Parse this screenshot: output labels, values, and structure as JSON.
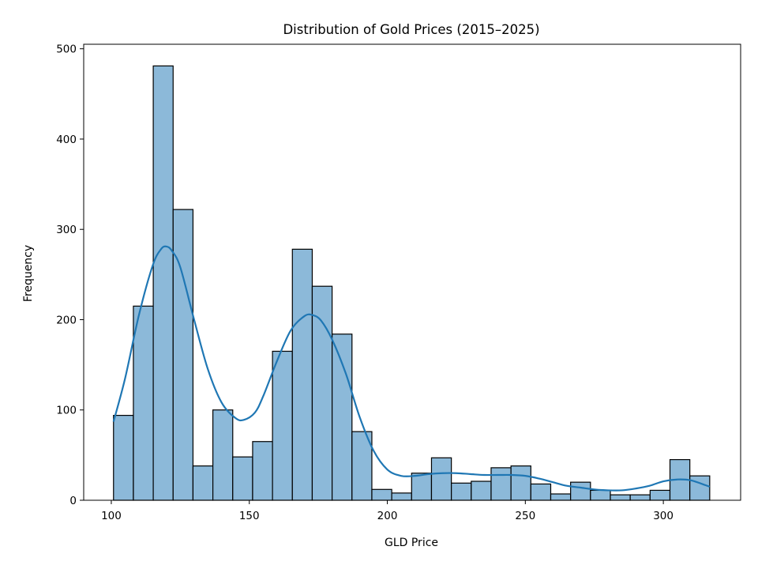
{
  "chart_data": {
    "type": "bar",
    "subtype": "histogram",
    "title": "Distribution of Gold Prices (2015–2025)",
    "xlabel": "GLD Price",
    "ylabel": "Frequency",
    "xlim": [
      90,
      328
    ],
    "ylim": [
      0,
      505
    ],
    "xticks": [
      100,
      150,
      200,
      250,
      300
    ],
    "yticks": [
      0,
      100,
      200,
      300,
      400,
      500
    ],
    "grid": false,
    "bar_color": "#8cb9d9",
    "bar_edge_color": "#000000",
    "kde_color": "#1f77b4",
    "bins": [
      {
        "x0": 100.8,
        "x1": 108.0,
        "count": 94
      },
      {
        "x0": 108.0,
        "x1": 115.2,
        "count": 215
      },
      {
        "x0": 115.2,
        "x1": 122.4,
        "count": 481
      },
      {
        "x0": 122.4,
        "x1": 129.6,
        "count": 322
      },
      {
        "x0": 129.6,
        "x1": 136.8,
        "count": 38
      },
      {
        "x0": 136.8,
        "x1": 144.0,
        "count": 100
      },
      {
        "x0": 144.0,
        "x1": 151.2,
        "count": 48
      },
      {
        "x0": 151.2,
        "x1": 158.4,
        "count": 65
      },
      {
        "x0": 158.4,
        "x1": 165.6,
        "count": 165
      },
      {
        "x0": 165.6,
        "x1": 172.8,
        "count": 278
      },
      {
        "x0": 172.8,
        "x1": 180.0,
        "count": 237
      },
      {
        "x0": 180.0,
        "x1": 187.2,
        "count": 184
      },
      {
        "x0": 187.2,
        "x1": 194.4,
        "count": 76
      },
      {
        "x0": 194.4,
        "x1": 201.6,
        "count": 12
      },
      {
        "x0": 201.6,
        "x1": 208.8,
        "count": 8
      },
      {
        "x0": 208.8,
        "x1": 216.0,
        "count": 30
      },
      {
        "x0": 216.0,
        "x1": 223.2,
        "count": 47
      },
      {
        "x0": 223.2,
        "x1": 230.4,
        "count": 19
      },
      {
        "x0": 230.4,
        "x1": 237.6,
        "count": 21
      },
      {
        "x0": 237.6,
        "x1": 244.8,
        "count": 36
      },
      {
        "x0": 244.8,
        "x1": 252.0,
        "count": 38
      },
      {
        "x0": 252.0,
        "x1": 259.2,
        "count": 18
      },
      {
        "x0": 259.2,
        "x1": 266.4,
        "count": 7
      },
      {
        "x0": 266.4,
        "x1": 273.6,
        "count": 20
      },
      {
        "x0": 273.6,
        "x1": 280.8,
        "count": 11
      },
      {
        "x0": 280.8,
        "x1": 288.0,
        "count": 6
      },
      {
        "x0": 288.0,
        "x1": 295.2,
        "count": 6
      },
      {
        "x0": 295.2,
        "x1": 302.4,
        "count": 11
      },
      {
        "x0": 302.4,
        "x1": 309.6,
        "count": 45
      },
      {
        "x0": 309.6,
        "x1": 316.8,
        "count": 27
      }
    ],
    "kde": {
      "x": [
        100.8,
        105,
        110,
        115,
        118,
        120,
        122,
        125,
        130,
        135,
        140,
        145,
        148,
        152,
        155,
        160,
        165,
        170,
        173,
        176,
        180,
        185,
        190,
        195,
        200,
        205,
        210,
        215,
        220,
        225,
        230,
        235,
        240,
        245,
        250,
        255,
        260,
        265,
        270,
        275,
        280,
        285,
        290,
        295,
        300,
        305,
        310,
        316.8
      ],
      "y": [
        87,
        135,
        205,
        260,
        278,
        281,
        276,
        258,
        200,
        145,
        108,
        91,
        89,
        97,
        115,
        154,
        188,
        204,
        205,
        199,
        178,
        140,
        92,
        55,
        34,
        27,
        27,
        29,
        30,
        30,
        29,
        28,
        28,
        28,
        27,
        24,
        20,
        16,
        14,
        12,
        11,
        11,
        13,
        16,
        21,
        23,
        22,
        15
      ]
    }
  }
}
